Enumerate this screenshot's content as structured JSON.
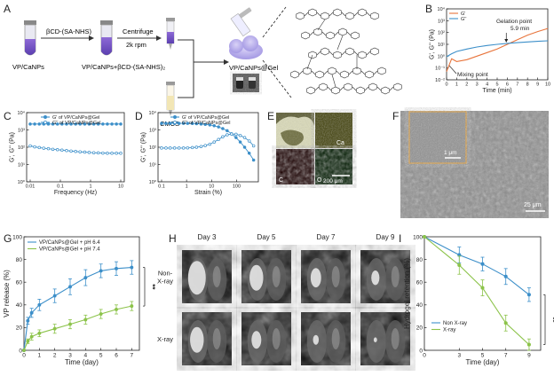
{
  "panel_letters": [
    "A",
    "B",
    "C",
    "D",
    "E",
    "F",
    "G",
    "H",
    "I"
  ],
  "scheme": {
    "vial1_label": "VP/CaNPs",
    "reagent_label": "βCD-(SA-NHS)",
    "centrifuge_label": "Centrifuge",
    "rpm_label": "2k rpm",
    "vial2_label": "VP/CaNPs+βCD-(SA-NHS)₂",
    "cmcs_label": "CMCS",
    "gel_label": "VP/CaNPs@Gel"
  },
  "micrographs": {
    "e_labels": [
      "Ca",
      "C",
      "O"
    ],
    "e_scale": "200 μm",
    "f_inset_scale": "1 μm",
    "f_scale": "25 μm"
  },
  "mri": {
    "days": [
      "Day 3",
      "Day 5",
      "Day 7",
      "Day 9"
    ],
    "rows": [
      "Non-\nX-ray",
      "X-ray"
    ]
  },
  "colors": {
    "blue": "#3c8fc9",
    "green": "#8cc34a",
    "orange": "#e8743b",
    "panel_line": "#000000"
  },
  "chart_data": [
    {
      "panel": "B",
      "type": "line",
      "xlabel": "Time (min)",
      "ylabel": "G', G'' (Pa)",
      "xticks": [
        "0",
        "1",
        "2",
        "3",
        "4",
        "5",
        "6",
        "7",
        "8",
        "9",
        "10"
      ],
      "yticks": [
        "10⁻²",
        "10⁻¹",
        "10⁰",
        "10¹",
        "10²",
        "10³",
        "10⁴"
      ],
      "xlim": [
        0,
        10
      ],
      "ylog": [
        -2,
        4
      ],
      "series": [
        {
          "name": "G'",
          "color": "#e8743b",
          "x": [
            0,
            0.5,
            1,
            2,
            3,
            4,
            5,
            6,
            7,
            8,
            9,
            10
          ],
          "y": [
            0.05,
            0.6,
            0.35,
            0.5,
            1.0,
            2.0,
            4.0,
            10,
            25,
            60,
            120,
            220
          ]
        },
        {
          "name": "G''",
          "color": "#3c8fc9",
          "x": [
            0,
            0.5,
            1,
            2,
            3,
            4,
            5,
            6,
            7,
            8,
            9,
            10
          ],
          "y": [
            0.9,
            1.6,
            2.5,
            4,
            6,
            8,
            10,
            12,
            14,
            16,
            18,
            20
          ]
        }
      ],
      "annotations": {
        "gel_point": "Gelation point",
        "gel_time": "5.9 min",
        "mix_point": "Mixing point"
      }
    },
    {
      "panel": "C",
      "type": "line",
      "xlabel": "Frequency (Hz)",
      "ylabel": "G', G'' (Pa)",
      "xticks": [
        "0.01",
        "0.1",
        "1",
        "10"
      ],
      "yticks": [
        "10⁰",
        "10¹",
        "10²",
        "10³",
        "10⁴"
      ],
      "xlog": [
        -2,
        1
      ],
      "ylog": [
        0,
        4
      ],
      "series": [
        {
          "name": "G' of VP/CaNPs@Gel",
          "color": "#3c8fc9",
          "marker": "filled",
          "x": [
            0.01,
            0.0141,
            0.02,
            0.0282,
            0.04,
            0.0564,
            0.08,
            0.113,
            0.16,
            0.226,
            0.32,
            0.45,
            0.64,
            0.9,
            1.28,
            1.8,
            2.56,
            3.6,
            5.1,
            7.2,
            10
          ],
          "y": [
            2200,
            2200,
            2200,
            2200,
            2200,
            2200,
            2200,
            2200,
            2200,
            2200,
            2200,
            2200,
            2200,
            2200,
            2200,
            2200,
            2200,
            2200,
            2200,
            2200,
            2200
          ]
        },
        {
          "name": "G'' of VP/CaNPs@Gel",
          "color": "#3c8fc9",
          "marker": "open",
          "x": [
            0.01,
            0.0141,
            0.02,
            0.0282,
            0.04,
            0.0564,
            0.08,
            0.113,
            0.16,
            0.226,
            0.32,
            0.45,
            0.64,
            0.9,
            1.28,
            1.8,
            2.56,
            3.6,
            5.1,
            7.2,
            10
          ],
          "y": [
            120,
            105,
            95,
            88,
            82,
            76,
            72,
            68,
            64,
            60,
            57,
            54,
            52,
            50,
            48,
            47,
            46,
            45,
            45,
            45,
            45
          ]
        }
      ]
    },
    {
      "panel": "D",
      "type": "line",
      "xlabel": "Strain (%)",
      "ylabel": "G', G'' (Pa)",
      "xticks": [
        "0.1",
        "1",
        "10",
        "100"
      ],
      "yticks": [
        "10⁰",
        "10¹",
        "10²",
        "10³",
        "10⁴"
      ],
      "xlog": [
        -1,
        2.8
      ],
      "ylog": [
        0,
        4
      ],
      "series": [
        {
          "name": "G' of VP/CaNPs@Gel",
          "color": "#3c8fc9",
          "marker": "filled",
          "x": [
            0.1,
            0.15,
            0.22,
            0.33,
            0.5,
            0.75,
            1.1,
            1.7,
            2.5,
            3.8,
            5.6,
            8.5,
            12.7,
            19,
            28,
            42,
            63,
            95,
            140,
            210,
            320,
            480
          ],
          "y": [
            2400,
            2400,
            2400,
            2400,
            2400,
            2400,
            2380,
            2350,
            2300,
            2200,
            2100,
            1950,
            1750,
            1500,
            1200,
            900,
            600,
            360,
            200,
            100,
            45,
            18
          ]
        },
        {
          "name": "G'' of VP/CaNPs@Gel",
          "color": "#3c8fc9",
          "marker": "open",
          "x": [
            0.1,
            0.15,
            0.22,
            0.33,
            0.5,
            0.75,
            1.1,
            1.7,
            2.5,
            3.8,
            5.6,
            8.5,
            12.7,
            19,
            28,
            42,
            63,
            95,
            140,
            210,
            320,
            480
          ],
          "y": [
            90,
            90,
            90,
            90,
            90,
            90,
            92,
            95,
            100,
            110,
            125,
            150,
            200,
            280,
            400,
            520,
            580,
            560,
            480,
            360,
            230,
            120
          ]
        }
      ]
    },
    {
      "panel": "G",
      "type": "line",
      "xlabel": "Time (day)",
      "ylabel": "VP release (%)",
      "xticks": [
        "0",
        "1",
        "2",
        "3",
        "4",
        "5",
        "6",
        "7"
      ],
      "yticks": [
        "0",
        "20",
        "40",
        "60",
        "80",
        "100"
      ],
      "xlim": [
        0,
        7.5
      ],
      "ylim": [
        0,
        100
      ],
      "significance": "**",
      "series": [
        {
          "name": "VP/CaNPs@Gel + pH 6.4",
          "color": "#3c8fc9",
          "x": [
            0,
            0.25,
            0.5,
            1,
            2,
            3,
            4,
            5,
            6,
            7
          ],
          "y": [
            0,
            26,
            33,
            40,
            48,
            56,
            64,
            70,
            72,
            73
          ],
          "err": [
            0,
            3,
            4,
            5,
            6,
            7,
            7,
            6,
            6,
            6
          ]
        },
        {
          "name": "VP/CaNPs@Gel + pH 7.4",
          "color": "#8cc34a",
          "x": [
            0,
            0.25,
            0.5,
            1,
            2,
            3,
            4,
            5,
            6,
            7
          ],
          "y": [
            0,
            8,
            12,
            15,
            19,
            23,
            27,
            32,
            36,
            39
          ],
          "err": [
            0,
            2,
            3,
            3,
            4,
            4,
            4,
            4,
            4,
            4
          ]
        }
      ]
    },
    {
      "panel": "I",
      "type": "line",
      "xlabel": "Time (day)",
      "ylabel": "Hydrogel retention (%)",
      "xticks": [
        "0",
        "3",
        "5",
        "7",
        "9"
      ],
      "xtick_vals": [
        0,
        3,
        5,
        7,
        9
      ],
      "yticks": [
        "0",
        "20",
        "40",
        "60",
        "80",
        "100"
      ],
      "xlim": [
        0,
        10
      ],
      "ylim": [
        0,
        100
      ],
      "significance": "**",
      "series": [
        {
          "name": "Non X-ray",
          "color": "#3c8fc9",
          "x": [
            0,
            3,
            5,
            7,
            9
          ],
          "y": [
            100,
            84,
            76,
            65,
            49
          ],
          "err": [
            0,
            7,
            6,
            7,
            6
          ]
        },
        {
          "name": "X-ray",
          "color": "#8cc34a",
          "x": [
            0,
            3,
            5,
            7,
            9
          ],
          "y": [
            100,
            75,
            55,
            24,
            5
          ],
          "err": [
            0,
            8,
            7,
            7,
            5
          ]
        }
      ]
    }
  ]
}
